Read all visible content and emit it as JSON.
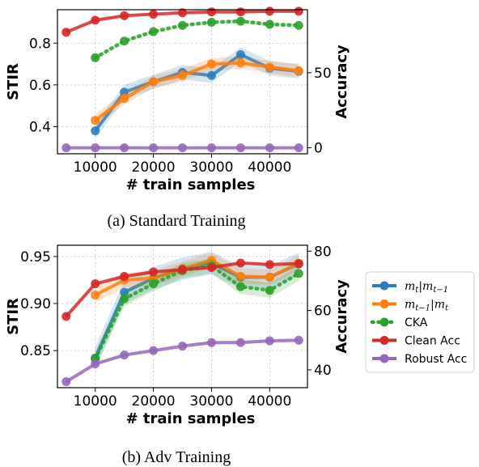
{
  "captions": [
    "(a) Standard Training",
    "(b) Adv Training"
  ],
  "colors": {
    "mt": "#2e7ebc",
    "mt1": "#ff7f0e",
    "cka": "#2ca02c",
    "clean": "#d62728",
    "robust": "#9467bd"
  },
  "legend": [
    {
      "key": "mt",
      "label": "m_t|m_{t−1}",
      "style": "solid"
    },
    {
      "key": "mt1",
      "label": "m_{t−1}|m_t",
      "style": "solid"
    },
    {
      "key": "cka",
      "label": "CKA",
      "style": "dotted"
    },
    {
      "key": "clean",
      "label": "Clean Acc",
      "style": "solid"
    },
    {
      "key": "robust",
      "label": "Robust Acc",
      "style": "solid"
    }
  ],
  "chart_data": [
    {
      "type": "line",
      "title": "(a) Standard Training",
      "xlabel": "# train samples",
      "ylabel": "STIR",
      "y2label": "Accuracy",
      "xlim": [
        3500,
        46500
      ],
      "ylim": [
        0.27,
        0.96
      ],
      "y2lim": [
        -4,
        92
      ],
      "xticks": [
        10000,
        20000,
        30000,
        40000
      ],
      "xtick_labels": [
        "10000",
        "20000",
        "30000",
        "40000"
      ],
      "yticks": [
        0.4,
        0.6,
        0.8
      ],
      "ytick_labels": [
        "0.4",
        "0.6",
        "0.8"
      ],
      "y2ticks": [
        0,
        50
      ],
      "y2tick_labels": [
        "0",
        "50"
      ],
      "grid": true,
      "series": [
        {
          "key": "mt",
          "axis": "left",
          "x": [
            10000,
            15000,
            20000,
            25000,
            30000,
            35000,
            40000,
            45000
          ],
          "y": [
            0.38,
            0.565,
            0.615,
            0.66,
            0.645,
            0.745,
            0.68,
            0.665
          ],
          "band": 0.035
        },
        {
          "key": "mt1",
          "axis": "left",
          "x": [
            10000,
            15000,
            20000,
            25000,
            30000,
            35000,
            40000,
            45000
          ],
          "y": [
            0.43,
            0.535,
            0.615,
            0.645,
            0.7,
            0.705,
            0.685,
            0.668
          ],
          "band": 0.03
        },
        {
          "key": "cka",
          "axis": "left",
          "x": [
            10000,
            15000,
            20000,
            25000,
            30000,
            35000,
            40000,
            45000
          ],
          "y": [
            0.73,
            0.81,
            0.855,
            0.885,
            0.9,
            0.905,
            0.89,
            0.885
          ],
          "band": 0.01
        },
        {
          "key": "clean",
          "axis": "right",
          "x": [
            5000,
            10000,
            15000,
            20000,
            25000,
            30000,
            35000,
            40000,
            45000
          ],
          "y": [
            77,
            85,
            88,
            89,
            90,
            90.5,
            90.5,
            91,
            91
          ]
        },
        {
          "key": "robust",
          "axis": "right",
          "x": [
            5000,
            10000,
            15000,
            20000,
            25000,
            30000,
            35000,
            40000,
            45000
          ],
          "y": [
            0,
            0,
            0,
            0,
            0,
            0,
            0,
            0,
            0
          ]
        }
      ]
    },
    {
      "type": "line",
      "title": "(b) Adv Training",
      "xlabel": "# train samples",
      "ylabel": "STIR",
      "y2label": "Accuracy",
      "xlim": [
        3500,
        46500
      ],
      "ylim": [
        0.8105,
        0.962
      ],
      "y2lim": [
        34,
        82
      ],
      "xticks": [
        10000,
        20000,
        30000,
        40000
      ],
      "xtick_labels": [
        "10000",
        "20000",
        "30000",
        "40000"
      ],
      "yticks": [
        0.85,
        0.9,
        0.95
      ],
      "ytick_labels": [
        "0.85",
        "0.90",
        "0.95"
      ],
      "y2ticks": [
        40,
        60,
        80
      ],
      "y2tick_labels": [
        "40",
        "60",
        "80"
      ],
      "grid": true,
      "series": [
        {
          "key": "mt",
          "axis": "left",
          "x": [
            10000,
            15000,
            20000,
            25000,
            30000,
            35000,
            40000,
            45000
          ],
          "y": [
            0.842,
            0.912,
            0.927,
            0.937,
            0.943,
            0.928,
            0.928,
            0.942
          ],
          "band": 0.012
        },
        {
          "key": "mt1",
          "axis": "left",
          "x": [
            10000,
            15000,
            20000,
            25000,
            30000,
            35000,
            40000,
            45000
          ],
          "y": [
            0.909,
            0.925,
            0.927,
            0.937,
            0.946,
            0.929,
            0.928,
            0.943
          ],
          "band": 0.008
        },
        {
          "key": "cka",
          "axis": "left",
          "x": [
            10000,
            15000,
            20000,
            25000,
            30000,
            35000,
            40000,
            45000
          ],
          "y": [
            0.841,
            0.905,
            0.921,
            0.935,
            0.94,
            0.918,
            0.914,
            0.932
          ],
          "band": 0.008
        },
        {
          "key": "clean",
          "axis": "right",
          "x": [
            5000,
            10000,
            15000,
            20000,
            25000,
            30000,
            35000,
            40000,
            45000
          ],
          "y": [
            58,
            69,
            71.5,
            73,
            73.8,
            74.5,
            76,
            75.5,
            75.8
          ]
        },
        {
          "key": "robust",
          "axis": "right",
          "x": [
            5000,
            10000,
            15000,
            20000,
            25000,
            30000,
            35000,
            40000,
            45000
          ],
          "y": [
            36,
            42,
            45,
            46.5,
            48,
            49.2,
            49.2,
            49.8,
            50
          ]
        }
      ]
    }
  ]
}
